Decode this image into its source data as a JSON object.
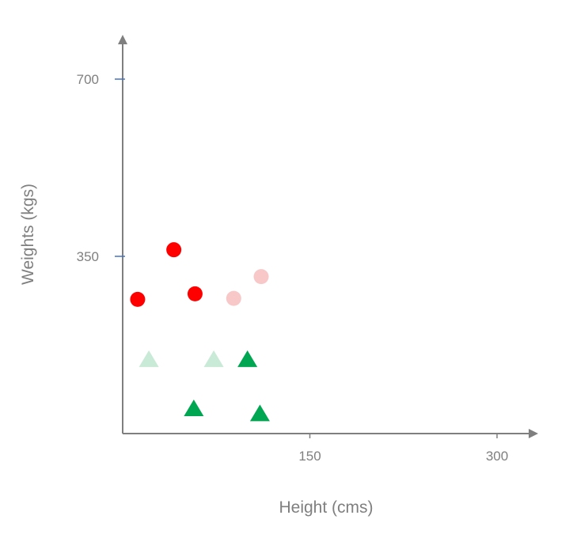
{
  "chart_data": {
    "type": "scatter",
    "xlabel": "Height (cms)",
    "ylabel": "Weights (kgs)",
    "x_ticks": [
      150,
      300
    ],
    "y_ticks": [
      350,
      700
    ],
    "xlim": [
      0,
      330
    ],
    "ylim": [
      0,
      780
    ],
    "grid": false,
    "legend": "none",
    "series": [
      {
        "marker": "circle",
        "color": "#ff0000",
        "points": [
          {
            "x": 12,
            "y": 265
          },
          {
            "x": 41,
            "y": 363
          },
          {
            "x": 58,
            "y": 276
          }
        ]
      },
      {
        "marker": "circle",
        "color": "#f8c8c8",
        "points": [
          {
            "x": 89,
            "y": 267
          },
          {
            "x": 111,
            "y": 310
          }
        ]
      },
      {
        "marker": "triangle",
        "color": "#00a651",
        "points": [
          {
            "x": 100,
            "y": 147
          },
          {
            "x": 57,
            "y": 50
          },
          {
            "x": 110,
            "y": 40
          }
        ]
      },
      {
        "marker": "triangle",
        "color": "#c8ead6",
        "points": [
          {
            "x": 21,
            "y": 147
          },
          {
            "x": 73,
            "y": 147
          }
        ]
      }
    ],
    "axis_color": "#7f7f7f",
    "tick_mark_color": "#4472c4"
  }
}
